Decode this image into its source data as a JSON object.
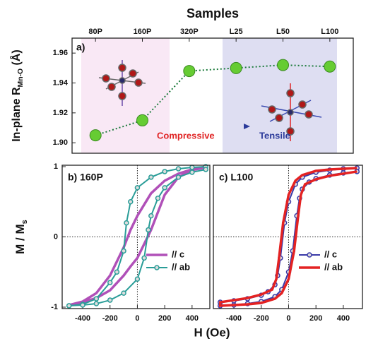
{
  "chart_data": [
    {
      "type": "line",
      "title": "Samples",
      "panel_label": "a)",
      "y_label": {
        "main": "In-plane R",
        "sub": "Mn-O",
        "tail": " (Å)"
      },
      "categories": [
        "80P",
        "160P",
        "320P",
        "L25",
        "L50",
        "L100"
      ],
      "series": [
        {
          "color": "#66cc33",
          "values": [
            1.905,
            1.915,
            1.948,
            1.95,
            1.952,
            1.951
          ]
        }
      ],
      "ylim": [
        1.893,
        1.97
      ],
      "yticks": [
        {
          "value": 1.9,
          "label": "1.90"
        },
        1.92,
        1.94,
        1.96
      ],
      "annotations": [
        "Compressive",
        "Tensile"
      ]
    },
    {
      "type": "line",
      "panel_label": "b) 160P",
      "x_label": "H (Oe)",
      "y_label": {
        "main": "M / M",
        "sub": "s"
      },
      "xlim": [
        -550,
        530
      ],
      "xticks": [
        -400,
        -200,
        0,
        200,
        400
      ],
      "ylim": [
        -1.02,
        1.02
      ],
      "yticks": [
        -1,
        0,
        1
      ],
      "legend": "lower right",
      "series": [
        {
          "name": "// c",
          "color": "#b050b8",
          "marker": false,
          "x": [
            500,
            400,
            300,
            200,
            100,
            0,
            -50,
            -100,
            -200,
            -300,
            -400,
            -500,
            -500,
            -400,
            -300,
            -200,
            -100,
            -50,
            0,
            100,
            200,
            300,
            400,
            500
          ],
          "values": [
            1.0,
            0.96,
            0.9,
            0.8,
            0.62,
            0.3,
            0.1,
            -0.15,
            -0.55,
            -0.8,
            -0.92,
            -0.97,
            -0.97,
            -0.93,
            -0.87,
            -0.76,
            -0.55,
            -0.42,
            -0.3,
            0.1,
            0.6,
            0.85,
            0.95,
            0.99
          ]
        },
        {
          "name": "// ab",
          "color": "#2a9d98",
          "marker": true,
          "x": [
            500,
            400,
            300,
            200,
            100,
            0,
            -50,
            -80,
            -100,
            -150,
            -200,
            -300,
            -400,
            -500,
            -500,
            -400,
            -300,
            -200,
            -100,
            0,
            50,
            80,
            100,
            150,
            200,
            300,
            400,
            500
          ],
          "values": [
            1.0,
            0.99,
            0.97,
            0.93,
            0.85,
            0.7,
            0.5,
            0.2,
            -0.2,
            -0.5,
            -0.65,
            -0.88,
            -0.96,
            -0.98,
            -0.98,
            -0.97,
            -0.95,
            -0.9,
            -0.8,
            -0.6,
            -0.3,
            0.1,
            0.3,
            0.55,
            0.7,
            0.85,
            0.92,
            0.96
          ]
        }
      ]
    },
    {
      "type": "line",
      "panel_label": "c) L100",
      "xlim": [
        -550,
        540
      ],
      "xticks": [
        -400,
        -200,
        0,
        200,
        400
      ],
      "ylim": [
        -1.02,
        1.02
      ],
      "legend": "lower right",
      "series": [
        {
          "name": "// c",
          "color": "#3a3aa8",
          "marker": true,
          "x": [
            500,
            400,
            300,
            200,
            100,
            50,
            0,
            -30,
            -60,
            -80,
            -100,
            -150,
            -200,
            -300,
            -400,
            -500,
            -500,
            -400,
            -300,
            -200,
            -100,
            -50,
            0,
            30,
            60,
            80,
            100,
            150,
            200,
            300,
            400,
            500
          ],
          "values": [
            0.98,
            0.97,
            0.95,
            0.92,
            0.85,
            0.75,
            0.5,
            0.2,
            -0.3,
            -0.55,
            -0.68,
            -0.78,
            -0.83,
            -0.88,
            -0.91,
            -0.93,
            -0.98,
            -0.97,
            -0.95,
            -0.92,
            -0.85,
            -0.75,
            -0.5,
            -0.2,
            0.3,
            0.55,
            0.68,
            0.78,
            0.83,
            0.88,
            0.91,
            0.93
          ]
        },
        {
          "name": "// ab",
          "color": "#e42222",
          "marker": false,
          "x": [
            500,
            400,
            300,
            200,
            100,
            50,
            0,
            -40,
            -70,
            -90,
            -120,
            -200,
            -300,
            -400,
            -500,
            -500,
            -400,
            -300,
            -200,
            -100,
            -50,
            0,
            40,
            70,
            90,
            120,
            200,
            300,
            400,
            500
          ],
          "values": [
            0.98,
            0.97,
            0.96,
            0.94,
            0.88,
            0.8,
            0.6,
            0.2,
            -0.3,
            -0.6,
            -0.75,
            -0.82,
            -0.87,
            -0.9,
            -0.93,
            -0.98,
            -0.97,
            -0.96,
            -0.94,
            -0.88,
            -0.8,
            -0.6,
            -0.2,
            0.3,
            0.6,
            0.75,
            0.82,
            0.87,
            0.9,
            0.93
          ]
        }
      ]
    }
  ]
}
